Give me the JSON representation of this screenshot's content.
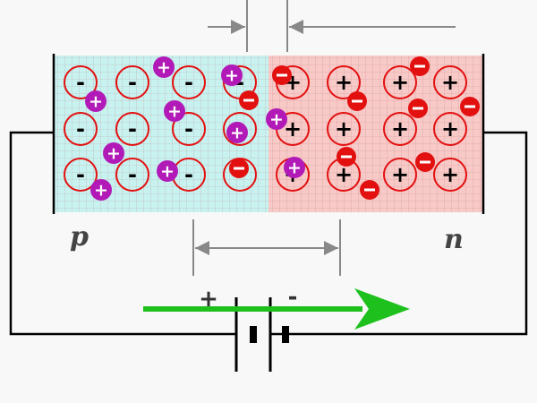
{
  "labels": {
    "p_region": "p",
    "n_region": "n",
    "positive_terminal": "+",
    "negative_terminal": "-"
  },
  "symbols": {
    "acceptor_ion": "-",
    "donor_ion": "+",
    "hole": "+",
    "electron": "-"
  },
  "colors": {
    "p_fill": "#c8f2f0",
    "n_fill": "#f7c9c7",
    "grid_line": "#b07070",
    "ion_ring": "#e31010",
    "hole": "#b21ab8",
    "electron": "#e31010",
    "arrow": "#1ec01e",
    "wire": "#000000",
    "dimension": "#888888",
    "bg": "#f8f8f8"
  }
}
